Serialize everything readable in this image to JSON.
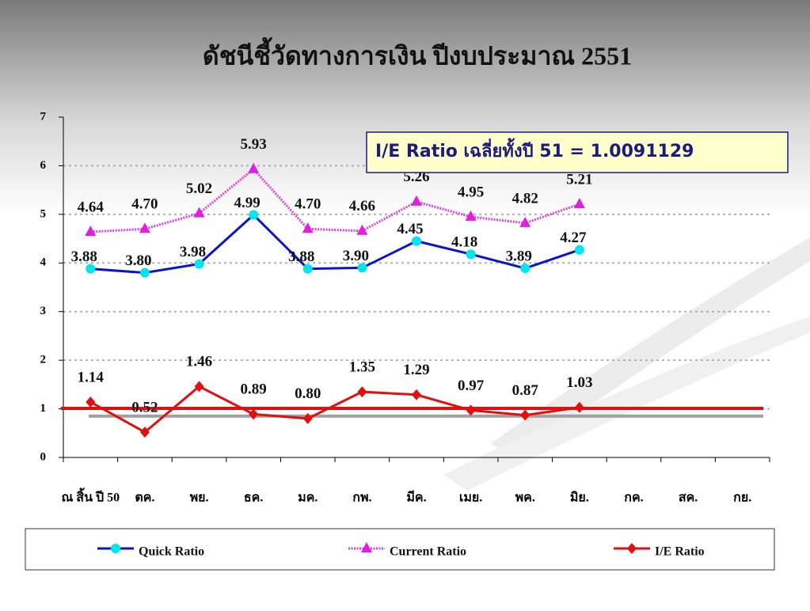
{
  "chart_data": {
    "type": "line",
    "title": "ดัชนีชี้วัดทางการเงิน ปีงบประมาณ 2551",
    "annotation": "I/E Ratio เฉลี่ยทั้งปี 51 = 1.0091129",
    "categories": [
      "ณ สิ้น ปี 50",
      "ตค.",
      "พย.",
      "ธค.",
      "มค.",
      "กพ.",
      "มีค.",
      "เมย.",
      "พค.",
      "มิย.",
      "กค.",
      "สค.",
      "กย."
    ],
    "series": [
      {
        "name": "Quick Ratio",
        "color": "#0a14c8",
        "marker": "circle",
        "marker_color": "#00e5ee",
        "label_pos": "below",
        "values": [
          3.88,
          3.8,
          3.98,
          4.99,
          3.88,
          3.9,
          4.45,
          4.18,
          3.89,
          4.27,
          null,
          null,
          null
        ],
        "value_labels": [
          "3.88",
          "3.80",
          "3.98",
          "4.99",
          "3.88",
          "3.90",
          "4.45",
          "4.18",
          "3.89",
          "4.27",
          null,
          null,
          null
        ]
      },
      {
        "name": "Current Ratio",
        "color": "#e040e0",
        "marker": "triangle",
        "marker_color": "#e020e0",
        "dashed": true,
        "label_pos": "above",
        "values": [
          4.64,
          4.7,
          5.02,
          5.93,
          4.7,
          4.66,
          5.26,
          4.95,
          4.82,
          5.21,
          null,
          null,
          null
        ],
        "value_labels": [
          "4.64",
          "4.70",
          "5.02",
          "5.93",
          "4.70",
          "4.66",
          "5.26",
          "4.95",
          "4.82",
          "5.21",
          null,
          null,
          null
        ]
      },
      {
        "name": "I/E Ratio",
        "color": "#e01010",
        "marker": "diamond",
        "marker_color": "#e01010",
        "label_pos": "above",
        "values": [
          1.14,
          0.52,
          1.46,
          0.89,
          0.8,
          1.35,
          1.29,
          0.97,
          0.87,
          1.03,
          null,
          null,
          null
        ],
        "value_labels": [
          "1.14",
          "0.52",
          "1.46",
          "0.89",
          "0.80",
          "1.35",
          "1.29",
          "0.97",
          "0.87",
          "1.03",
          null,
          null,
          null
        ]
      }
    ],
    "reference_lines": [
      {
        "value": 0.85,
        "color": "#a0a0a0"
      },
      {
        "value": 1.0091129,
        "color": "#e01010"
      }
    ],
    "ylim": [
      0,
      7
    ],
    "yticks": [
      0,
      1,
      2,
      3,
      4,
      5,
      6,
      7
    ],
    "grid": true,
    "legend": "bottom"
  }
}
